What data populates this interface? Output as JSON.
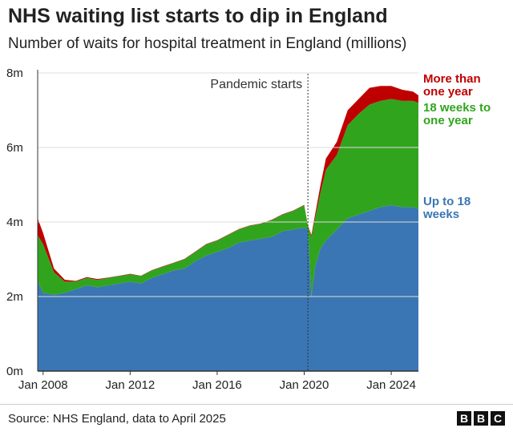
{
  "chart_data": {
    "type": "area",
    "stacked": true,
    "title": "NHS waiting list starts to dip in England",
    "subtitle": "Number of waits for hospital treatment in England (millions)",
    "x_ticks": [
      "Jan 2008",
      "Jan 2012",
      "Jan 2016",
      "Jan 2020",
      "Jan 2024"
    ],
    "y_ticks": [
      "0m",
      "2m",
      "4m",
      "6m",
      "8m"
    ],
    "ylim": [
      0,
      8
    ],
    "xlim": [
      2007.75,
      2025.25
    ],
    "annotation": {
      "text": "Pandemic starts",
      "x": 2020.17
    },
    "x": [
      2007.75,
      2008.0,
      2008.5,
      2009.0,
      2009.5,
      2010.0,
      2010.5,
      2011.0,
      2011.5,
      2012.0,
      2012.5,
      2013.0,
      2013.5,
      2014.0,
      2014.5,
      2015.0,
      2015.5,
      2016.0,
      2016.5,
      2017.0,
      2017.5,
      2018.0,
      2018.5,
      2019.0,
      2019.5,
      2020.0,
      2020.17,
      2020.33,
      2020.5,
      2020.75,
      2021.0,
      2021.5,
      2022.0,
      2022.5,
      2023.0,
      2023.5,
      2024.0,
      2024.5,
      2025.0,
      2025.25
    ],
    "series": [
      {
        "name": "Up to 18 weeks",
        "color": "#3a76b3",
        "values": [
          2.4,
          2.1,
          2.05,
          2.1,
          2.2,
          2.3,
          2.25,
          2.3,
          2.35,
          2.4,
          2.35,
          2.5,
          2.6,
          2.7,
          2.75,
          2.95,
          3.1,
          3.2,
          3.3,
          3.45,
          3.5,
          3.55,
          3.6,
          3.75,
          3.8,
          3.85,
          3.8,
          2.0,
          2.8,
          3.3,
          3.5,
          3.8,
          4.1,
          4.2,
          4.3,
          4.4,
          4.45,
          4.4,
          4.4,
          4.35
        ]
      },
      {
        "name": "18 weeks to one year",
        "color": "#31a41e",
        "values": [
          1.25,
          1.3,
          0.6,
          0.3,
          0.2,
          0.2,
          0.2,
          0.2,
          0.2,
          0.2,
          0.2,
          0.2,
          0.2,
          0.2,
          0.25,
          0.25,
          0.3,
          0.3,
          0.35,
          0.35,
          0.4,
          0.4,
          0.45,
          0.45,
          0.5,
          0.6,
          0.1,
          1.6,
          1.3,
          1.5,
          1.9,
          2.0,
          2.5,
          2.7,
          2.85,
          2.85,
          2.85,
          2.85,
          2.85,
          2.85
        ]
      },
      {
        "name": "More than one year",
        "color": "#bf0000",
        "values": [
          0.45,
          0.3,
          0.1,
          0.05,
          0.02,
          0.02,
          0.02,
          0.01,
          0.01,
          0.01,
          0.01,
          0.01,
          0.01,
          0.01,
          0.01,
          0.01,
          0.01,
          0.01,
          0.01,
          0.01,
          0.01,
          0.01,
          0.01,
          0.01,
          0.01,
          0.01,
          0.01,
          0.05,
          0.1,
          0.2,
          0.3,
          0.35,
          0.4,
          0.4,
          0.45,
          0.4,
          0.35,
          0.3,
          0.25,
          0.2
        ]
      }
    ]
  },
  "series_labels": [
    {
      "lines": [
        "More than",
        "one year"
      ],
      "color": "#bf0000"
    },
    {
      "lines": [
        "18 weeks to",
        "one year"
      ],
      "color": "#31a41e"
    },
    {
      "lines": [
        "Up to 18",
        "weeks"
      ],
      "color": "#3a76b3"
    }
  ],
  "footer": {
    "source": "Source: NHS England, data to April 2025",
    "logo": [
      "B",
      "B",
      "C"
    ]
  }
}
